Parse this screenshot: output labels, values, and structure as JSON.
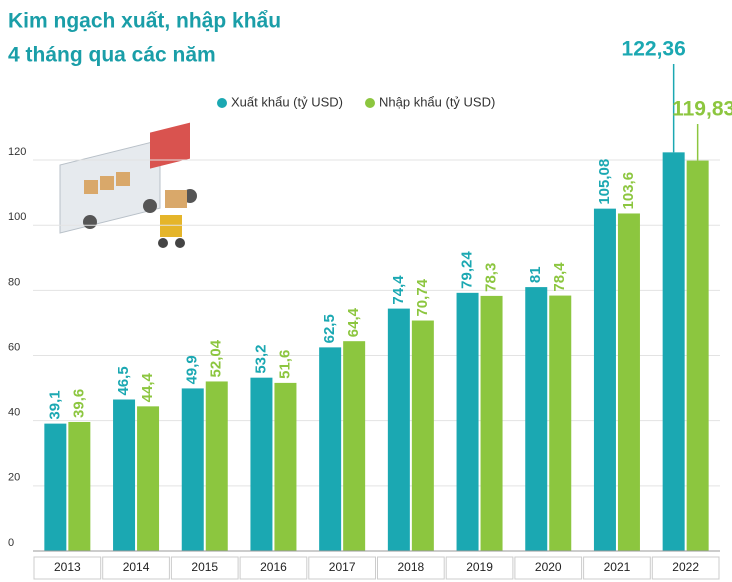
{
  "chart_data": {
    "type": "bar",
    "title": [
      "Kim ngạch xuất, nhập khẩu",
      "4 tháng qua các năm"
    ],
    "categories": [
      "2013",
      "2014",
      "2015",
      "2016",
      "2017",
      "2018",
      "2019",
      "2020",
      "2021",
      "2022"
    ],
    "series": [
      {
        "name": "Xuất khẩu (tỷ USD)",
        "color": "#1ba8b2",
        "values": [
          39.1,
          46.5,
          49.9,
          53.2,
          62.5,
          74.4,
          79.24,
          81,
          105.08,
          122.36
        ],
        "value_labels": [
          "39,1",
          "46,5",
          "49,9",
          "53,2",
          "62,5",
          "74,4",
          "79,24",
          "81",
          "105,08",
          "122,36"
        ]
      },
      {
        "name": "Nhập khẩu (tỷ USD)",
        "color": "#8cc63f",
        "values": [
          39.6,
          44.4,
          52.04,
          51.6,
          64.4,
          70.74,
          78.3,
          78.4,
          103.6,
          119.83
        ],
        "value_labels": [
          "39,6",
          "44,4",
          "52,04",
          "51,6",
          "64,4",
          "70,74",
          "78,3",
          "78,4",
          "103,6",
          "119,83"
        ]
      }
    ],
    "ylim": [
      0,
      130
    ],
    "yticks": [
      0,
      20,
      40,
      60,
      80,
      100,
      120
    ],
    "grid": true
  }
}
